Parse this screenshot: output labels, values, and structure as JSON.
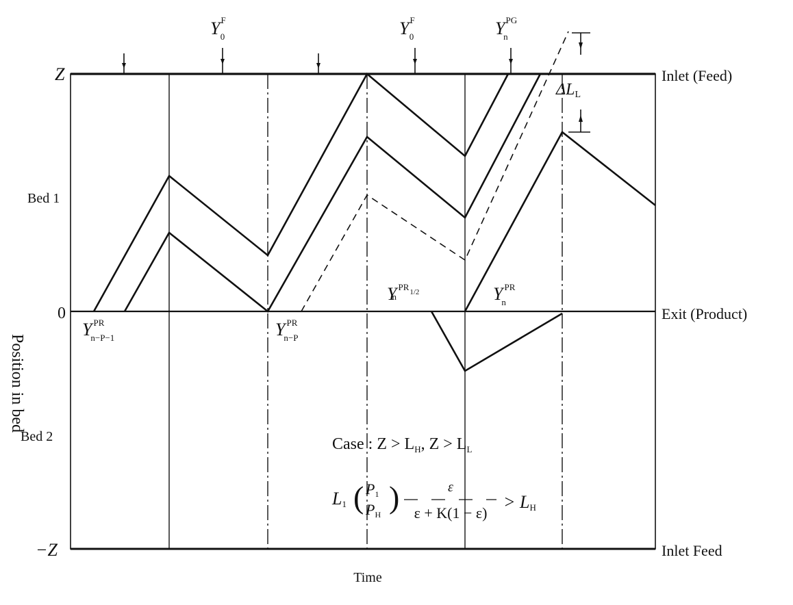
{
  "axis": {
    "y_title": "Position in bed",
    "x_title": "Time",
    "left_labels": {
      "top": "Z",
      "bed1": "Bed 1",
      "zero": "0",
      "bed2": "Bed 2",
      "bottom": "−Z"
    },
    "right_labels": {
      "top": "Inlet (Feed)",
      "zero": "Exit (Product)",
      "bottom": "Inlet  Feed"
    }
  },
  "top_labels": [
    {
      "base": "Y",
      "sup": "F",
      "sub": "0"
    },
    {
      "base": "Y",
      "sup": "F",
      "sub": "0"
    },
    {
      "base": "Y",
      "sup": "PG",
      "sub": "n"
    }
  ],
  "curve_labels": [
    {
      "base": "Y",
      "sup": "PR",
      "sub": "n−P−1"
    },
    {
      "base": "Y",
      "sup": "PR",
      "sub": "n−P"
    },
    {
      "base": "Y",
      "sup": "PR",
      "sub": "n",
      "sup_sub": "1/2"
    },
    {
      "base": "Y",
      "sup": "PR",
      "sub": "n"
    }
  ],
  "delta_label": {
    "text": "ΔL",
    "sub": "L"
  },
  "case": {
    "line1": "Case : Z > L",
    "line1_sub1": "H",
    "line1_mid": ", Z > L",
    "line1_sub2": "L",
    "line2_a": "L",
    "line2_a_sub": "1",
    "frac1_num": "P",
    "frac1_num_sub": "1",
    "frac1_den": "P",
    "frac1_den_sub": "H",
    "frac2_num": "ε",
    "frac2_den": "ε + K(1 − ε)",
    "rhs": "> L",
    "rhs_sub": "H"
  }
}
